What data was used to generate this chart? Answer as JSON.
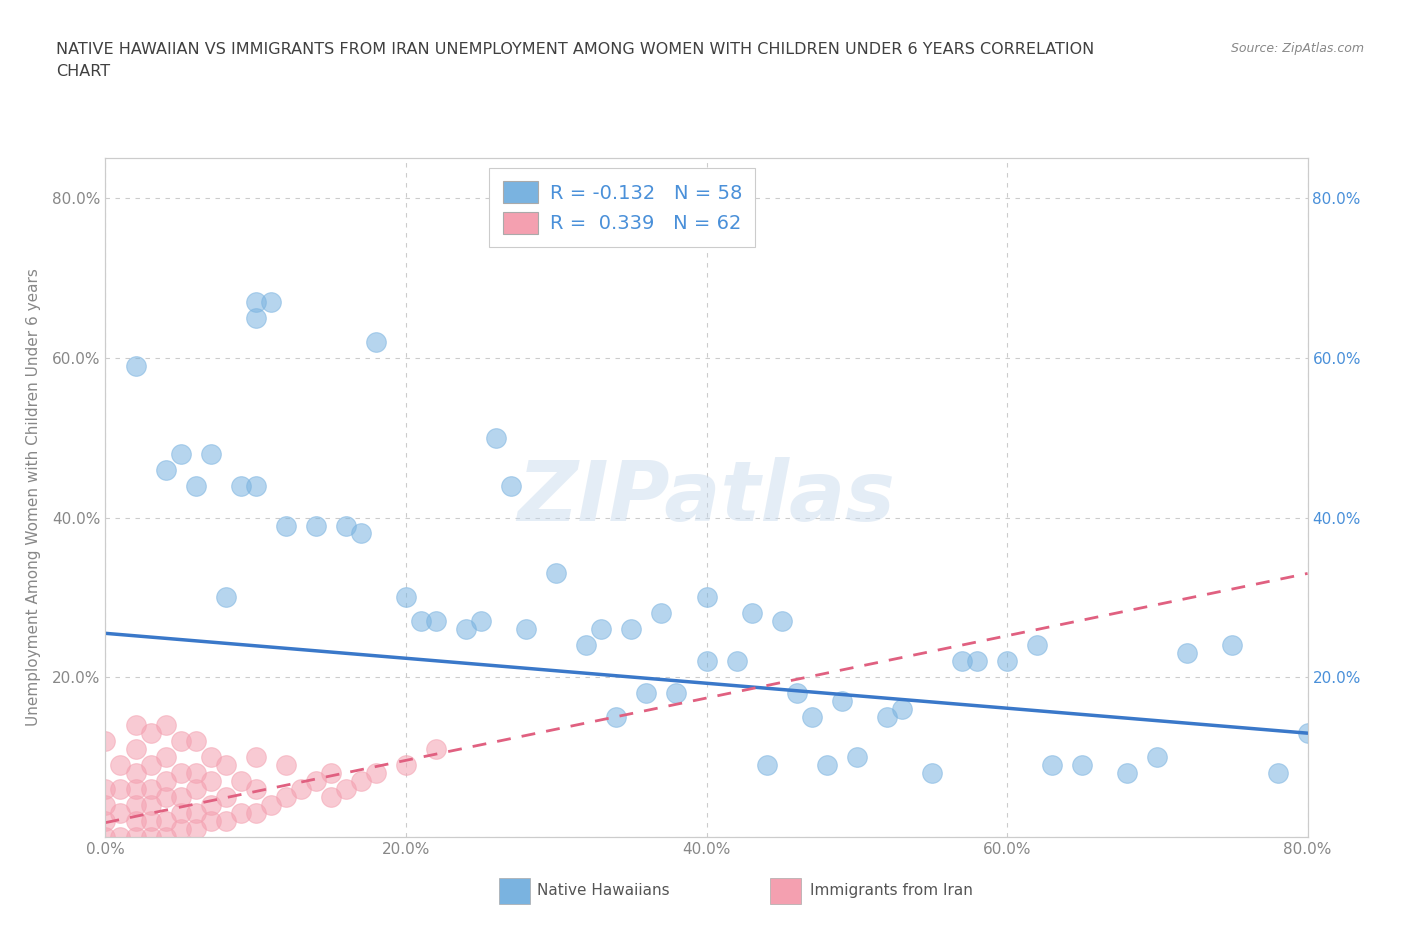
{
  "title": "NATIVE HAWAIIAN VS IMMIGRANTS FROM IRAN UNEMPLOYMENT AMONG WOMEN WITH CHILDREN UNDER 6 YEARS CORRELATION\nCHART",
  "source": "Source: ZipAtlas.com",
  "ylabel": "Unemployment Among Women with Children Under 6 years",
  "xlim": [
    0,
    0.8
  ],
  "ylim": [
    0,
    0.85
  ],
  "xticks": [
    0.0,
    0.2,
    0.4,
    0.6,
    0.8
  ],
  "yticks": [
    0.0,
    0.2,
    0.4,
    0.6,
    0.8
  ],
  "xticklabels": [
    "0.0%",
    "20.0%",
    "40.0%",
    "60.0%",
    "80.0%"
  ],
  "yticklabels": [
    "",
    "20.0%",
    "40.0%",
    "60.0%",
    "80.0%"
  ],
  "right_yticklabels": [
    "20.0%",
    "40.0%",
    "60.0%",
    "80.0%"
  ],
  "right_yticks": [
    0.2,
    0.4,
    0.6,
    0.8
  ],
  "native_hawaiian_color": "#7ab3e0",
  "iran_color": "#f4a0b0",
  "native_hawaiian_line_color": "#3a78c9",
  "iran_line_color": "#e06080",
  "watermark_text": "ZIPatlas",
  "legend_label_1": "R = -0.132   N = 58",
  "legend_label_2": "R =  0.339   N = 62",
  "bottom_legend_1": "Native Hawaiians",
  "bottom_legend_2": "Immigrants from Iran",
  "grid_color": "#cccccc",
  "background_color": "#ffffff",
  "title_color": "#404040",
  "tick_color": "#888888",
  "right_tick_color": "#4a90d9",
  "axis_color": "#cccccc",
  "nh_x": [
    0.02,
    0.04,
    0.05,
    0.06,
    0.07,
    0.08,
    0.09,
    0.1,
    0.1,
    0.1,
    0.11,
    0.12,
    0.14,
    0.16,
    0.17,
    0.18,
    0.2,
    0.21,
    0.22,
    0.24,
    0.25,
    0.26,
    0.27,
    0.28,
    0.3,
    0.32,
    0.33,
    0.34,
    0.35,
    0.36,
    0.37,
    0.38,
    0.4,
    0.4,
    0.42,
    0.43,
    0.44,
    0.45,
    0.46,
    0.47,
    0.48,
    0.49,
    0.5,
    0.52,
    0.53,
    0.55,
    0.57,
    0.58,
    0.6,
    0.62,
    0.63,
    0.65,
    0.68,
    0.7,
    0.72,
    0.75,
    0.78,
    0.8
  ],
  "nh_y": [
    0.59,
    0.46,
    0.48,
    0.44,
    0.48,
    0.3,
    0.44,
    0.65,
    0.67,
    0.44,
    0.67,
    0.39,
    0.39,
    0.39,
    0.38,
    0.62,
    0.3,
    0.27,
    0.27,
    0.26,
    0.27,
    0.5,
    0.44,
    0.26,
    0.33,
    0.24,
    0.26,
    0.15,
    0.26,
    0.18,
    0.28,
    0.18,
    0.22,
    0.3,
    0.22,
    0.28,
    0.09,
    0.27,
    0.18,
    0.15,
    0.09,
    0.17,
    0.1,
    0.15,
    0.16,
    0.08,
    0.22,
    0.22,
    0.22,
    0.24,
    0.09,
    0.09,
    0.08,
    0.1,
    0.23,
    0.24,
    0.08,
    0.13
  ],
  "iran_x": [
    0.0,
    0.0,
    0.0,
    0.0,
    0.0,
    0.01,
    0.01,
    0.01,
    0.01,
    0.02,
    0.02,
    0.02,
    0.02,
    0.02,
    0.02,
    0.02,
    0.03,
    0.03,
    0.03,
    0.03,
    0.03,
    0.03,
    0.04,
    0.04,
    0.04,
    0.04,
    0.04,
    0.04,
    0.05,
    0.05,
    0.05,
    0.05,
    0.05,
    0.06,
    0.06,
    0.06,
    0.06,
    0.06,
    0.07,
    0.07,
    0.07,
    0.07,
    0.08,
    0.08,
    0.08,
    0.09,
    0.09,
    0.1,
    0.1,
    0.1,
    0.11,
    0.12,
    0.12,
    0.13,
    0.14,
    0.15,
    0.15,
    0.16,
    0.17,
    0.18,
    0.2,
    0.22
  ],
  "iran_y": [
    0.0,
    0.02,
    0.04,
    0.06,
    0.12,
    0.0,
    0.03,
    0.06,
    0.09,
    0.0,
    0.02,
    0.04,
    0.06,
    0.08,
    0.11,
    0.14,
    0.0,
    0.02,
    0.04,
    0.06,
    0.09,
    0.13,
    0.0,
    0.02,
    0.05,
    0.07,
    0.1,
    0.14,
    0.01,
    0.03,
    0.05,
    0.08,
    0.12,
    0.01,
    0.03,
    0.06,
    0.08,
    0.12,
    0.02,
    0.04,
    0.07,
    0.1,
    0.02,
    0.05,
    0.09,
    0.03,
    0.07,
    0.03,
    0.06,
    0.1,
    0.04,
    0.05,
    0.09,
    0.06,
    0.07,
    0.05,
    0.08,
    0.06,
    0.07,
    0.08,
    0.09,
    0.11
  ],
  "nh_trend_x0": 0.0,
  "nh_trend_y0": 0.255,
  "nh_trend_x1": 0.8,
  "nh_trend_y1": 0.13,
  "iran_trend_x0": 0.0,
  "iran_trend_y0": 0.018,
  "iran_trend_x1": 0.8,
  "iran_trend_y1": 0.33
}
